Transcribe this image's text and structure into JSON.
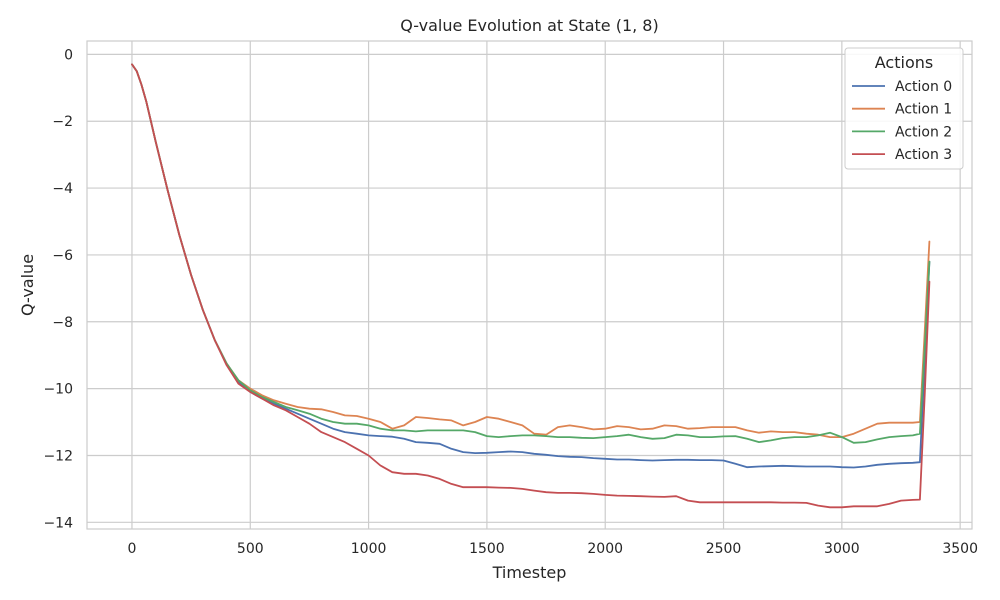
{
  "chart_data": {
    "type": "line",
    "title": "Q-value Evolution at State (1, 8)",
    "xlabel": "Timestep",
    "ylabel": "Q-value",
    "xlim": [
      -190,
      3550
    ],
    "ylim": [
      -14.2,
      0.4
    ],
    "xticks": [
      0,
      500,
      1000,
      1500,
      2000,
      2500,
      3000,
      3500
    ],
    "yticks": [
      0,
      -2,
      -4,
      -6,
      -8,
      -10,
      -12,
      -14
    ],
    "grid": true,
    "legend": {
      "title": "Actions",
      "position": "top-right"
    },
    "series": [
      {
        "name": "Action 0",
        "color": "#4c72b0",
        "x": [
          0,
          20,
          40,
          60,
          80,
          100,
          150,
          200,
          250,
          300,
          350,
          400,
          450,
          500,
          550,
          600,
          650,
          700,
          750,
          800,
          850,
          900,
          950,
          1000,
          1050,
          1100,
          1150,
          1200,
          1250,
          1300,
          1350,
          1400,
          1450,
          1500,
          1550,
          1600,
          1650,
          1700,
          1750,
          1800,
          1850,
          1900,
          1950,
          2000,
          2050,
          2100,
          2150,
          2200,
          2250,
          2300,
          2350,
          2400,
          2450,
          2500,
          2550,
          2600,
          2650,
          2700,
          2750,
          2800,
          2850,
          2900,
          2950,
          3000,
          3050,
          3100,
          3150,
          3200,
          3250,
          3300,
          3330,
          3350,
          3370
        ],
        "y": [
          -0.3,
          -0.5,
          -0.9,
          -1.4,
          -2.0,
          -2.6,
          -4.05,
          -5.4,
          -6.6,
          -7.65,
          -8.55,
          -9.25,
          -9.8,
          -10.1,
          -10.3,
          -10.45,
          -10.6,
          -10.75,
          -10.9,
          -11.05,
          -11.2,
          -11.3,
          -11.35,
          -11.4,
          -11.42,
          -11.44,
          -11.5,
          -11.6,
          -11.62,
          -11.65,
          -11.8,
          -11.9,
          -11.93,
          -11.92,
          -11.9,
          -11.88,
          -11.9,
          -11.95,
          -11.98,
          -12.02,
          -12.04,
          -12.05,
          -12.08,
          -12.1,
          -12.12,
          -12.12,
          -12.14,
          -12.15,
          -12.14,
          -12.13,
          -12.13,
          -12.14,
          -12.14,
          -12.15,
          -12.25,
          -12.35,
          -12.33,
          -12.32,
          -12.31,
          -12.32,
          -12.33,
          -12.33,
          -12.33,
          -12.35,
          -12.36,
          -12.33,
          -12.28,
          -12.25,
          -12.23,
          -12.22,
          -12.2,
          -9.2,
          -6.2
        ]
      },
      {
        "name": "Action 1",
        "color": "#dd8452",
        "x": [
          0,
          20,
          40,
          60,
          80,
          100,
          150,
          200,
          250,
          300,
          350,
          400,
          450,
          500,
          550,
          600,
          650,
          700,
          750,
          800,
          850,
          900,
          950,
          1000,
          1050,
          1100,
          1150,
          1200,
          1250,
          1300,
          1350,
          1400,
          1450,
          1500,
          1550,
          1600,
          1650,
          1700,
          1750,
          1800,
          1850,
          1900,
          1950,
          2000,
          2050,
          2100,
          2150,
          2200,
          2250,
          2300,
          2350,
          2400,
          2450,
          2500,
          2550,
          2600,
          2650,
          2700,
          2750,
          2800,
          2850,
          2900,
          2950,
          3000,
          3050,
          3100,
          3150,
          3200,
          3250,
          3300,
          3330,
          3350,
          3370
        ],
        "y": [
          -0.3,
          -0.5,
          -0.9,
          -1.4,
          -2.0,
          -2.6,
          -4.05,
          -5.4,
          -6.6,
          -7.65,
          -8.55,
          -9.25,
          -9.75,
          -10.0,
          -10.2,
          -10.35,
          -10.45,
          -10.55,
          -10.6,
          -10.62,
          -10.7,
          -10.8,
          -10.82,
          -10.9,
          -11.0,
          -11.2,
          -11.1,
          -10.85,
          -10.88,
          -10.92,
          -10.95,
          -11.1,
          -11.0,
          -10.85,
          -10.9,
          -11.0,
          -11.1,
          -11.35,
          -11.38,
          -11.15,
          -11.1,
          -11.15,
          -11.22,
          -11.2,
          -11.12,
          -11.15,
          -11.22,
          -11.2,
          -11.1,
          -11.12,
          -11.2,
          -11.18,
          -11.15,
          -11.15,
          -11.15,
          -11.25,
          -11.32,
          -11.28,
          -11.3,
          -11.3,
          -11.35,
          -11.38,
          -11.45,
          -11.45,
          -11.35,
          -11.2,
          -11.05,
          -11.02,
          -11.02,
          -11.02,
          -11.0,
          -8.3,
          -5.6
        ]
      },
      {
        "name": "Action 2",
        "color": "#55a868",
        "x": [
          0,
          20,
          40,
          60,
          80,
          100,
          150,
          200,
          250,
          300,
          350,
          400,
          450,
          500,
          550,
          600,
          650,
          700,
          750,
          800,
          850,
          900,
          950,
          1000,
          1050,
          1100,
          1150,
          1200,
          1250,
          1300,
          1350,
          1400,
          1450,
          1500,
          1550,
          1600,
          1650,
          1700,
          1750,
          1800,
          1850,
          1900,
          1950,
          2000,
          2050,
          2100,
          2150,
          2200,
          2250,
          2300,
          2350,
          2400,
          2450,
          2500,
          2550,
          2600,
          2650,
          2700,
          2750,
          2800,
          2850,
          2900,
          2950,
          3000,
          3050,
          3100,
          3150,
          3200,
          3250,
          3300,
          3330,
          3350,
          3370
        ],
        "y": [
          -0.3,
          -0.5,
          -0.9,
          -1.4,
          -2.0,
          -2.6,
          -4.05,
          -5.4,
          -6.6,
          -7.65,
          -8.55,
          -9.25,
          -9.75,
          -10.05,
          -10.25,
          -10.4,
          -10.55,
          -10.65,
          -10.75,
          -10.9,
          -11.0,
          -11.05,
          -11.05,
          -11.1,
          -11.2,
          -11.25,
          -11.25,
          -11.28,
          -11.25,
          -11.25,
          -11.25,
          -11.25,
          -11.3,
          -11.42,
          -11.45,
          -11.42,
          -11.4,
          -11.4,
          -11.42,
          -11.45,
          -11.45,
          -11.47,
          -11.48,
          -11.45,
          -11.42,
          -11.38,
          -11.45,
          -11.5,
          -11.48,
          -11.38,
          -11.4,
          -11.45,
          -11.45,
          -11.43,
          -11.42,
          -11.5,
          -11.6,
          -11.55,
          -11.48,
          -11.45,
          -11.45,
          -11.4,
          -11.32,
          -11.45,
          -11.62,
          -11.6,
          -11.52,
          -11.45,
          -11.42,
          -11.4,
          -11.35,
          -8.8,
          -6.2
        ]
      },
      {
        "name": "Action 3",
        "color": "#c44e52",
        "x": [
          0,
          20,
          40,
          60,
          80,
          100,
          150,
          200,
          250,
          300,
          350,
          400,
          450,
          500,
          550,
          600,
          650,
          700,
          750,
          800,
          850,
          900,
          950,
          1000,
          1050,
          1100,
          1150,
          1200,
          1250,
          1300,
          1350,
          1400,
          1450,
          1500,
          1550,
          1600,
          1650,
          1700,
          1750,
          1800,
          1850,
          1900,
          1950,
          2000,
          2050,
          2100,
          2150,
          2200,
          2250,
          2300,
          2350,
          2400,
          2450,
          2500,
          2550,
          2600,
          2650,
          2700,
          2750,
          2800,
          2850,
          2900,
          2950,
          3000,
          3050,
          3100,
          3150,
          3200,
          3250,
          3300,
          3330,
          3350,
          3370
        ],
        "y": [
          -0.3,
          -0.5,
          -0.9,
          -1.4,
          -2.0,
          -2.6,
          -4.05,
          -5.4,
          -6.6,
          -7.65,
          -8.55,
          -9.3,
          -9.85,
          -10.1,
          -10.3,
          -10.5,
          -10.65,
          -10.85,
          -11.05,
          -11.3,
          -11.45,
          -11.6,
          -11.8,
          -12.0,
          -12.3,
          -12.5,
          -12.55,
          -12.55,
          -12.6,
          -12.7,
          -12.85,
          -12.95,
          -12.95,
          -12.95,
          -12.96,
          -12.97,
          -13.0,
          -13.05,
          -13.1,
          -13.12,
          -13.12,
          -13.13,
          -13.15,
          -13.18,
          -13.2,
          -13.21,
          -13.22,
          -13.23,
          -13.24,
          -13.22,
          -13.35,
          -13.4,
          -13.4,
          -13.4,
          -13.4,
          -13.4,
          -13.4,
          -13.4,
          -13.41,
          -13.41,
          -13.42,
          -13.5,
          -13.55,
          -13.55,
          -13.52,
          -13.52,
          -13.52,
          -13.45,
          -13.35,
          -13.33,
          -13.32,
          -10.2,
          -6.8
        ]
      }
    ]
  }
}
